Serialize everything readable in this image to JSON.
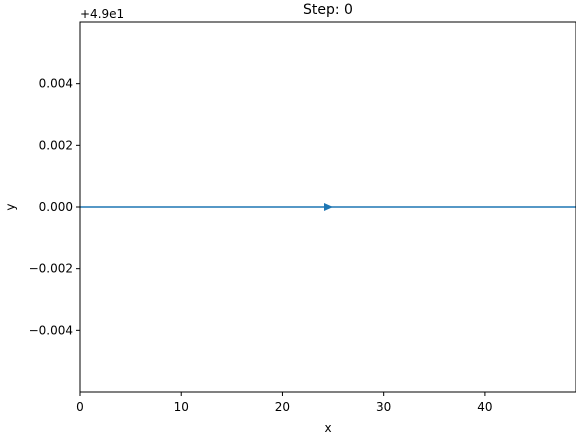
{
  "chart_data": {
    "type": "line",
    "title": "Step: 0",
    "x_label": "x",
    "y_label": "y",
    "y_offset_label": "+4.9e1",
    "x": [
      0,
      49
    ],
    "series": [
      {
        "name": null,
        "color": "#1f77b4",
        "values": [
          0,
          0
        ]
      }
    ],
    "xlim": [
      0,
      49
    ],
    "xticks": [
      0,
      10,
      20,
      30,
      40
    ],
    "ylim": [
      -0.006,
      0.006
    ],
    "yticks": [
      {
        "value": -0.004,
        "label": "−0.004"
      },
      {
        "value": -0.002,
        "label": "−0.002"
      },
      {
        "value": 0,
        "label": "0.000"
      },
      0.002,
      0.004
    ],
    "grid": false
  }
}
